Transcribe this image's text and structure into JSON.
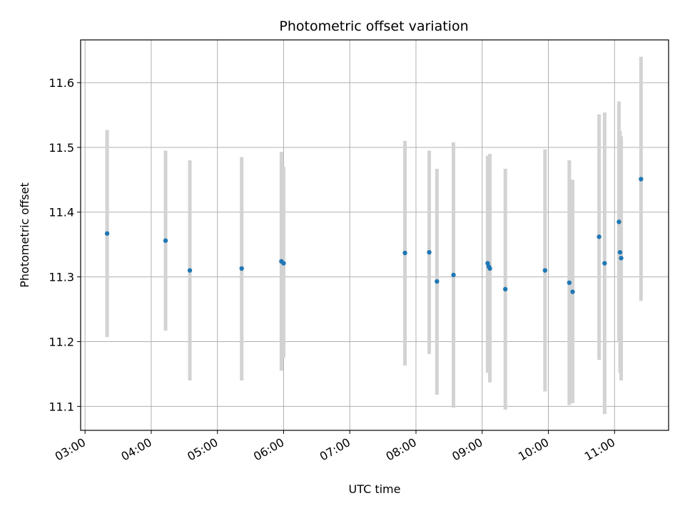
{
  "chart_data": {
    "type": "scatter",
    "title": "Photometric offset variation",
    "xlabel": "UTC time",
    "ylabel": "Photometric offset",
    "x_ticks": [
      "03:00",
      "04:00",
      "05:00",
      "06:00",
      "07:00",
      "08:00",
      "09:00",
      "10:00",
      "11:00"
    ],
    "y_ticks": [
      "11.1",
      "11.2",
      "11.3",
      "11.4",
      "11.5",
      "11.6"
    ],
    "xlim": [
      "02:56",
      "11:49"
    ],
    "ylim": [
      11.063,
      11.666
    ],
    "grid": true,
    "colors": {
      "points": "#1f77b4",
      "errorbars": "#d3d3d3",
      "grid": "#b0b0b0"
    },
    "points": [
      {
        "t": "03:20",
        "y": 11.367,
        "lo": 11.207,
        "hi": 11.527
      },
      {
        "t": "04:13",
        "y": 11.356,
        "lo": 11.217,
        "hi": 11.495
      },
      {
        "t": "04:35",
        "y": 11.31,
        "lo": 11.14,
        "hi": 11.48
      },
      {
        "t": "05:22",
        "y": 11.313,
        "lo": 11.14,
        "hi": 11.485
      },
      {
        "t": "05:58",
        "y": 11.324,
        "lo": 11.155,
        "hi": 11.493
      },
      {
        "t": "06:00",
        "y": 11.321,
        "lo": 11.175,
        "hi": 11.47
      },
      {
        "t": "07:50",
        "y": 11.337,
        "lo": 11.163,
        "hi": 11.51
      },
      {
        "t": "08:12",
        "y": 11.338,
        "lo": 11.181,
        "hi": 11.495
      },
      {
        "t": "08:19",
        "y": 11.293,
        "lo": 11.118,
        "hi": 11.467
      },
      {
        "t": "08:34",
        "y": 11.303,
        "lo": 11.098,
        "hi": 11.508
      },
      {
        "t": "09:05",
        "y": 11.321,
        "lo": 11.152,
        "hi": 11.487
      },
      {
        "t": "09:06",
        "y": 11.316,
        "lo": 11.152,
        "hi": 11.481
      },
      {
        "t": "09:07",
        "y": 11.313,
        "lo": 11.137,
        "hi": 11.49
      },
      {
        "t": "09:21",
        "y": 11.281,
        "lo": 11.095,
        "hi": 11.467
      },
      {
        "t": "09:57",
        "y": 11.31,
        "lo": 11.123,
        "hi": 11.497
      },
      {
        "t": "10:19",
        "y": 11.291,
        "lo": 11.102,
        "hi": 11.48
      },
      {
        "t": "10:22",
        "y": 11.277,
        "lo": 11.105,
        "hi": 11.45
      },
      {
        "t": "10:46",
        "y": 11.362,
        "lo": 11.172,
        "hi": 11.551
      },
      {
        "t": "10:51",
        "y": 11.321,
        "lo": 11.088,
        "hi": 11.554
      },
      {
        "t": "11:04",
        "y": 11.385,
        "lo": 11.2,
        "hi": 11.571
      },
      {
        "t": "11:05",
        "y": 11.338,
        "lo": 11.152,
        "hi": 11.525
      },
      {
        "t": "11:06",
        "y": 11.329,
        "lo": 11.14,
        "hi": 11.517
      },
      {
        "t": "11:24",
        "y": 11.451,
        "lo": 11.263,
        "hi": 11.64
      }
    ]
  }
}
